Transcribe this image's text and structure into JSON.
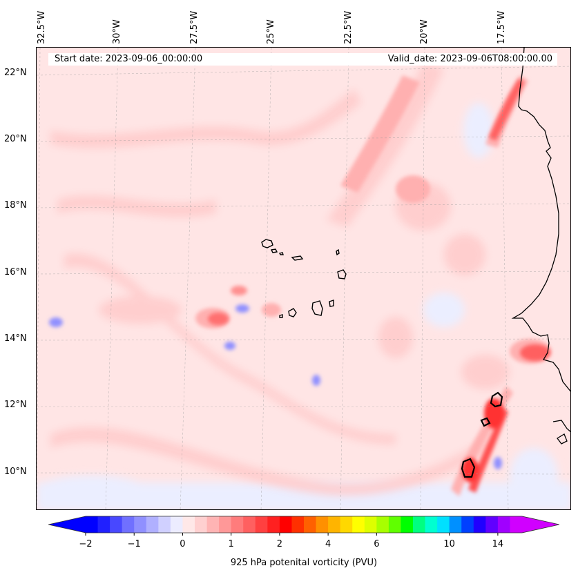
{
  "map": {
    "start_date": "Start date: 2023-09-06_00:00:00",
    "valid_date": "Valid_date: 2023-09-06T08:00:00.00",
    "lon_labels": [
      "32.5°W",
      "30°W",
      "27.5°W",
      "25°W",
      "22.5°W",
      "20°W",
      "17.5°W"
    ],
    "lat_labels": [
      "22°N",
      "20°N",
      "18°N",
      "16°N",
      "14°N",
      "12°N",
      "10°N"
    ],
    "extent": {
      "lon": [
        -32.6,
        -14.6
      ],
      "lat": [
        8.9,
        22.8
      ]
    },
    "gridlines": true,
    "colors": {
      "background_field": "#ffe3e3",
      "coastline": "#000000"
    }
  },
  "colorbar": {
    "label": "925 hPa potenital vorticity (PVU)",
    "tick_labels": [
      "−2",
      "−1",
      "0",
      "1",
      "2",
      "4",
      "6",
      "10",
      "14"
    ],
    "tick_values": [
      -2,
      -1,
      0,
      1,
      2,
      4,
      6,
      10,
      14
    ],
    "extend": "both",
    "colors": [
      "#0000ff",
      "#2020ff",
      "#4848ff",
      "#7070ff",
      "#9090ff",
      "#b0b0ff",
      "#d0d0ff",
      "#ececff",
      "#ffe8e8",
      "#ffd0d0",
      "#ffb4b4",
      "#ff9898",
      "#ff7c7c",
      "#ff6060",
      "#ff4040",
      "#ff2020",
      "#ff0000",
      "#ff3000",
      "#ff6000",
      "#ff9000",
      "#ffb400",
      "#ffd800",
      "#ffff00",
      "#ddff00",
      "#a8ff00",
      "#60ff00",
      "#00ff00",
      "#00ff80",
      "#00ffd0",
      "#00e0ff",
      "#0090ff",
      "#0040ff",
      "#2000ff",
      "#6000ff",
      "#a000ff",
      "#d000ff"
    ]
  }
}
